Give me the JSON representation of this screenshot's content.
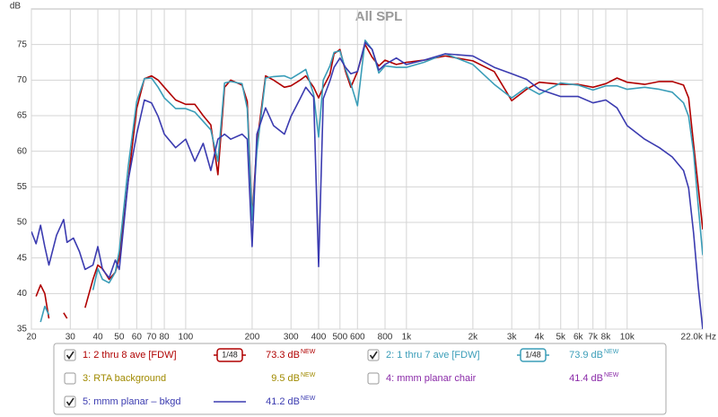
{
  "chart_data": {
    "type": "line",
    "title": "All SPL",
    "y_label": "dB",
    "x_scale": "log",
    "grid": true,
    "xlim": [
      20,
      22000
    ],
    "ylim": [
      35,
      80
    ],
    "xticks": [
      20,
      30,
      40,
      50,
      60,
      70,
      80,
      100,
      200,
      300,
      400,
      500,
      600,
      800,
      {
        "value": 1000,
        "label": "1k"
      },
      {
        "value": 2000,
        "label": "2k"
      },
      {
        "value": 3000,
        "label": "3k"
      },
      {
        "value": 4000,
        "label": "4k"
      },
      {
        "value": 5000,
        "label": "5k"
      },
      {
        "value": 6000,
        "label": "6k"
      },
      {
        "value": 7000,
        "label": "7k"
      },
      {
        "value": 8000,
        "label": "8k"
      },
      {
        "value": 10000,
        "label": "10k"
      },
      {
        "value": 22000,
        "label": "22.0k Hz"
      }
    ],
    "yticks": [
      35,
      40,
      45,
      50,
      55,
      60,
      65,
      70,
      75
    ],
    "x": [
      20,
      21,
      22,
      23,
      24,
      26,
      28,
      29,
      31,
      33,
      35,
      38,
      40,
      42,
      45,
      48,
      50,
      55,
      60,
      65,
      70,
      75,
      80,
      90,
      100,
      110,
      120,
      130,
      140,
      150,
      160,
      180,
      190,
      200,
      210,
      230,
      250,
      280,
      300,
      330,
      350,
      380,
      400,
      420,
      450,
      470,
      500,
      530,
      560,
      600,
      650,
      700,
      750,
      800,
      900,
      1000,
      1200,
      1500,
      2000,
      2500,
      3000,
      3500,
      4000,
      5000,
      6000,
      7000,
      8000,
      9000,
      10000,
      12000,
      14000,
      16000,
      18000,
      19000,
      20000,
      21000,
      22000
    ],
    "series": [
      {
        "name": "1: 2 thru 8 ave [FDW]",
        "color": "#b00000",
        "checked": true,
        "smoothing": "1/48",
        "level": "73.3 dB",
        "values": [
          null,
          39.6,
          41.2,
          40,
          36.5,
          null,
          37.3,
          36.5,
          null,
          null,
          38,
          42,
          44,
          43.5,
          42,
          43,
          45,
          56,
          66,
          70.2,
          70.6,
          70,
          69,
          67.2,
          66.6,
          66.6,
          65,
          63.7,
          56.7,
          69,
          70,
          69.3,
          67,
          50.6,
          61,
          70.6,
          70,
          69,
          69.2,
          70,
          70.6,
          69,
          67.5,
          69,
          70.8,
          73.7,
          74.3,
          71.2,
          69,
          71.2,
          75,
          73.2,
          72,
          72.8,
          72.2,
          72.5,
          72.8,
          73.4,
          72.7,
          71.2,
          67.1,
          68.7,
          69.7,
          69.4,
          69.4,
          69,
          69.5,
          70.3,
          69.7,
          69.4,
          69.8,
          69.8,
          69.3,
          67.5,
          61,
          55,
          49
        ]
      },
      {
        "name": "2: 1 thru 7 ave [FDW]",
        "color": "#3a9db8",
        "checked": true,
        "smoothing": "1/48",
        "level": "73.9 dB",
        "values": [
          null,
          null,
          36,
          38.2,
          37,
          null,
          null,
          36,
          null,
          null,
          null,
          40.5,
          43.5,
          42,
          41.5,
          43,
          46,
          58,
          67,
          70.2,
          70.3,
          69,
          67.5,
          66,
          66,
          65.5,
          64.2,
          63,
          58.6,
          69.6,
          69.8,
          69.5,
          66,
          50.3,
          60,
          70.3,
          70.5,
          70.6,
          70.2,
          71,
          71.5,
          68,
          62,
          70,
          72,
          73.9,
          74.1,
          71.5,
          69.5,
          66.4,
          75.6,
          74.3,
          71,
          72,
          71.8,
          71.8,
          72.5,
          73.7,
          72.2,
          69.4,
          67.5,
          69,
          68,
          69.6,
          69.3,
          68.6,
          69.2,
          69.2,
          68.7,
          69,
          68.7,
          68.3,
          66.8,
          64.9,
          59.8,
          52.3,
          45.4
        ]
      },
      {
        "name": "5: mmm planar – bkgd",
        "color": "#3b3bb0",
        "checked": true,
        "level": "41.2 dB",
        "values": [
          48.7,
          47,
          49.6,
          46.6,
          44,
          48.2,
          50.4,
          47.2,
          47.8,
          45.9,
          43.4,
          44,
          46.6,
          43.4,
          42.2,
          44.7,
          43.4,
          56,
          62.4,
          67.2,
          66.8,
          64.9,
          62.4,
          60.5,
          61.7,
          58.6,
          61.1,
          57.3,
          61.7,
          62.4,
          61.7,
          62.4,
          61.7,
          46.6,
          62.4,
          66.1,
          63.6,
          62.4,
          64.9,
          67.4,
          69,
          67.6,
          43.8,
          67.4,
          69.9,
          71.8,
          73.1,
          71.8,
          70.9,
          71.2,
          75.3,
          74.3,
          71.4,
          72.2,
          73.1,
          72.2,
          72.8,
          73.7,
          73.4,
          71.8,
          70.9,
          70.1,
          68.7,
          67.7,
          67.7,
          66.8,
          67.2,
          66.1,
          63.6,
          61.7,
          60.5,
          59.2,
          57.3,
          54.8,
          48.5,
          41,
          35
        ]
      }
    ]
  },
  "legend_panel": {
    "new_tag": "NEW",
    "hidden_entries": [
      {
        "name": "3: RTA background",
        "color": "#a08a00",
        "checked": false,
        "level": "9.5 dB"
      },
      {
        "name": "4: mmm planar chair",
        "color": "#8a2aa8",
        "checked": false,
        "level": "41.4 dB"
      }
    ]
  }
}
